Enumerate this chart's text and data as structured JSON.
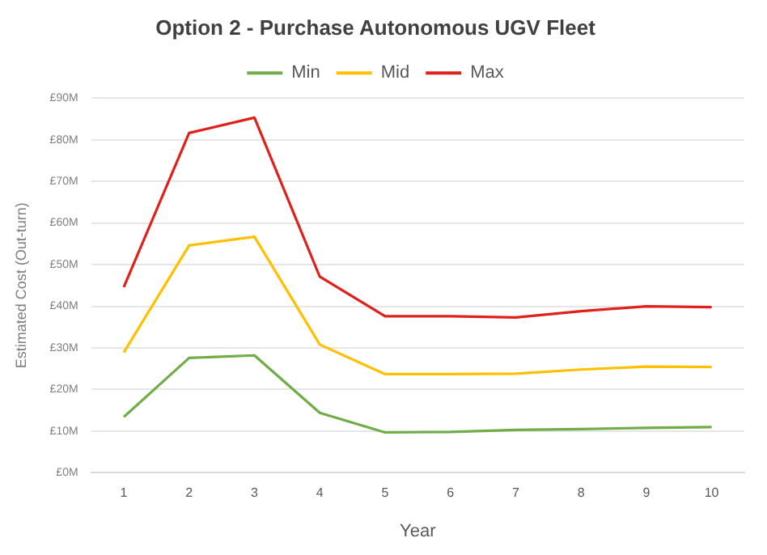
{
  "chart_data": {
    "type": "line",
    "title": "Option 2 - Purchase Autonomous UGV Fleet",
    "xlabel": "Year",
    "ylabel": "Estimated Cost (Out-turn)",
    "categories": [
      "1",
      "2",
      "3",
      "4",
      "5",
      "6",
      "7",
      "8",
      "9",
      "10"
    ],
    "series": [
      {
        "name": "Min",
        "color": "#70ad47",
        "values": [
          13.4,
          27.6,
          28.2,
          14.4,
          9.7,
          9.8,
          10.3,
          10.5,
          10.8,
          11.0
        ]
      },
      {
        "name": "Mid",
        "color": "#ffc000",
        "values": [
          28.9,
          54.6,
          56.7,
          30.8,
          23.7,
          23.7,
          23.8,
          24.8,
          25.5,
          25.4
        ]
      },
      {
        "name": "Max",
        "color": "#e0201b",
        "values": [
          44.6,
          81.6,
          85.3,
          47.1,
          37.6,
          37.6,
          37.3,
          38.8,
          40.0,
          39.8
        ]
      }
    ],
    "ylim": [
      0,
      90
    ],
    "yticks": [
      {
        "value": 0,
        "label": "£0M"
      },
      {
        "value": 10,
        "label": "£10M"
      },
      {
        "value": 20,
        "label": "£20M"
      },
      {
        "value": 30,
        "label": "£30M"
      },
      {
        "value": 40,
        "label": "£40M"
      },
      {
        "value": 50,
        "label": "£50M"
      },
      {
        "value": 60,
        "label": "£60M"
      },
      {
        "value": 70,
        "label": "£70M"
      },
      {
        "value": 80,
        "label": "£80M"
      },
      {
        "value": 90,
        "label": "£90M"
      }
    ],
    "grid": "y",
    "legend": "top",
    "marker": "none",
    "line_style": "solid"
  }
}
